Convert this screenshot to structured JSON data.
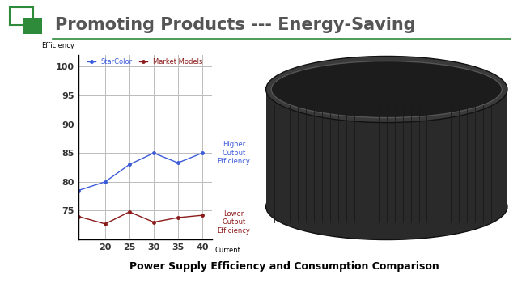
{
  "slide_title": "Promoting Products --- Energy-Saving",
  "chart_data": {
    "type": "line",
    "title": "Power Supply Efficiency and Consumption Comparison",
    "x_label": "Current",
    "y_label": "Efficiency",
    "x": [
      14.5,
      20,
      25,
      30,
      35,
      40
    ],
    "series": [
      {
        "name": "StarColor",
        "color": "#3b5bd9",
        "marker": "o",
        "line_style": "solid",
        "values": [
          78.5,
          80,
          83,
          85,
          83.3,
          85
        ]
      },
      {
        "name": "Market Models",
        "color": "#8b1a1a",
        "marker": "o",
        "line_style": "solid",
        "values": [
          74,
          72.7,
          74.8,
          73,
          73.8,
          74.2
        ]
      }
    ],
    "annotations": [
      {
        "text": "Higher Output Efficiency",
        "series": "StarColor",
        "y": 85
      },
      {
        "text": "Lower Output Efficiency",
        "series": "Market Models",
        "y": 73
      }
    ],
    "xlim": [
      14.5,
      42
    ],
    "ylim": [
      70,
      102
    ],
    "xticks": [
      20,
      25,
      30,
      35,
      40
    ],
    "yticks": [
      75,
      80,
      85,
      90,
      95,
      100
    ],
    "grid": true,
    "legend": "upper center"
  }
}
